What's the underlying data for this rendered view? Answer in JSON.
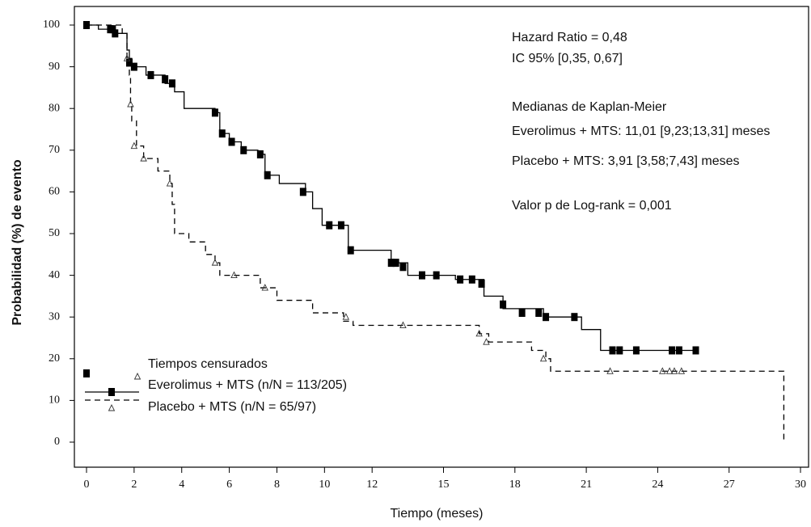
{
  "chart_data": {
    "type": "line",
    "step": true,
    "xlabel": "Tiempo (meses)",
    "ylabel": "Probabilidad (%) de evento",
    "xlim": [
      0,
      30
    ],
    "ylim": [
      0,
      100
    ],
    "xticks": [
      0,
      2,
      4,
      6,
      8,
      10,
      12,
      15,
      18,
      21,
      24,
      27,
      30
    ],
    "yticks": [
      0,
      10,
      20,
      30,
      40,
      50,
      60,
      70,
      80,
      90,
      100
    ],
    "annotations": [
      "Hazard Ratio = 0,48",
      "IC 95% [0,35, 0,67]",
      "Medianas de Kaplan-Meier",
      "Everolimus + MTS: 11,01 [9,23;13,31] meses",
      "Placebo + MTS: 3,91 [3,58;7,43] meses",
      "Valor p de Log-rank = 0,001"
    ],
    "censored_label": "Tiempos censurados",
    "series": [
      {
        "name": "Everolimus + MTS (n/N = 113/205)",
        "color": "#000000",
        "dash": "solid",
        "marker": "square",
        "x": [
          0,
          0.5,
          1.2,
          1.7,
          1.8,
          1.9,
          2.5,
          3.3,
          3.7,
          4.1,
          5.4,
          5.6,
          6.0,
          6.5,
          7.2,
          7.5,
          8.1,
          9.2,
          9.5,
          9.9,
          11.0,
          12.8,
          13.5,
          15.5,
          16.7,
          17.5,
          19.2,
          20.8,
          21.6,
          25.7
        ],
        "values": [
          100,
          99,
          98,
          94,
          92,
          90,
          88,
          86,
          84,
          80,
          79,
          74,
          72,
          70,
          69,
          64,
          62,
          60,
          56,
          52,
          46,
          43,
          40,
          39,
          35,
          32,
          30,
          27,
          22,
          22
        ],
        "censored_x": [
          0,
          1,
          1.1,
          1.2,
          1.8,
          2,
          2.7,
          3.3,
          3.6,
          5.4,
          5.7,
          6.1,
          6.6,
          7.3,
          7.6,
          9.1,
          10.2,
          10.7,
          11.1,
          12.8,
          13,
          13.3,
          14.1,
          14.7,
          15.7,
          16.2,
          16.6,
          17.5,
          18.3,
          19,
          19.3,
          20.5,
          22.1,
          22.4,
          23.1,
          24.6,
          24.9,
          25.6
        ],
        "censored_values": [
          100,
          99,
          99,
          98,
          91,
          90,
          88,
          87,
          86,
          79,
          74,
          72,
          70,
          69,
          64,
          60,
          52,
          52,
          46,
          43,
          43,
          42,
          40,
          40,
          39,
          39,
          38,
          33,
          31,
          31,
          30,
          30,
          22,
          22,
          22,
          22,
          22,
          22
        ]
      },
      {
        "name": "Placebo + MTS (n/N = 65/97)",
        "color": "#000000",
        "dash": "dashed",
        "marker": "triangle",
        "x": [
          0,
          1.5,
          1.7,
          1.8,
          1.85,
          1.9,
          2.1,
          2.4,
          3.0,
          3.5,
          3.6,
          3.7,
          4.3,
          5.0,
          5.4,
          5.6,
          7.3,
          8.0,
          9.5,
          10.8,
          11.2,
          16.5,
          16.9,
          18.7,
          19.3,
          19.5,
          29.3,
          29.3
        ],
        "values": [
          100,
          98,
          92,
          88,
          81,
          77,
          71,
          68,
          65,
          62,
          57,
          50,
          48,
          45,
          43,
          40,
          37,
          34,
          31,
          29,
          28,
          26,
          24,
          22,
          20,
          17,
          17,
          0
        ],
        "censored_x": [
          1.7,
          1.85,
          2,
          2.4,
          3.5,
          5.4,
          6.2,
          7.5,
          10.9,
          13.3,
          16.5,
          16.8,
          19.2,
          22,
          24.2,
          24.5,
          24.7,
          25
        ],
        "censored_values": [
          92,
          81,
          71,
          68,
          62,
          43,
          40,
          37,
          30,
          28,
          26,
          24,
          20,
          17,
          17,
          17,
          17,
          17
        ]
      }
    ]
  }
}
